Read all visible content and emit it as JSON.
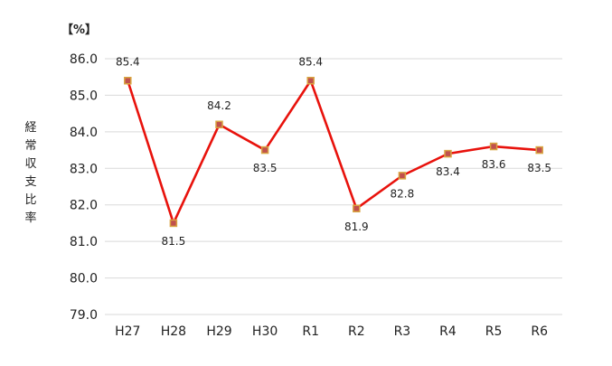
{
  "chart_data": {
    "type": "line",
    "unit_label": "【%】",
    "ylabel": "経常収支比率",
    "categories": [
      "H27",
      "H28",
      "H29",
      "H30",
      "R1",
      "R2",
      "R3",
      "R4",
      "R5",
      "R6"
    ],
    "series": [
      {
        "values": [
          85.4,
          81.5,
          84.2,
          83.5,
          85.4,
          81.9,
          82.8,
          83.4,
          83.6,
          83.5
        ]
      }
    ],
    "data_labels": [
      "85.4",
      "81.5",
      "84.2",
      "83.5",
      "85.4",
      "81.9",
      "82.8",
      "83.4",
      "83.6",
      "83.5"
    ],
    "label_positions": [
      "above",
      "below",
      "above",
      "below",
      "above",
      "below",
      "below",
      "below",
      "below",
      "below"
    ],
    "y_ticks": [
      "79.0",
      "80.0",
      "81.0",
      "82.0",
      "83.0",
      "84.0",
      "85.0",
      "86.0"
    ],
    "ylim": [
      79,
      86
    ],
    "grid": true,
    "legend": "none",
    "colors": {
      "line": "#e8120c",
      "marker_fill": "#c0504d",
      "marker_edge": "#d9a441",
      "grid": "#d9d9d9",
      "text": "#222222"
    }
  }
}
